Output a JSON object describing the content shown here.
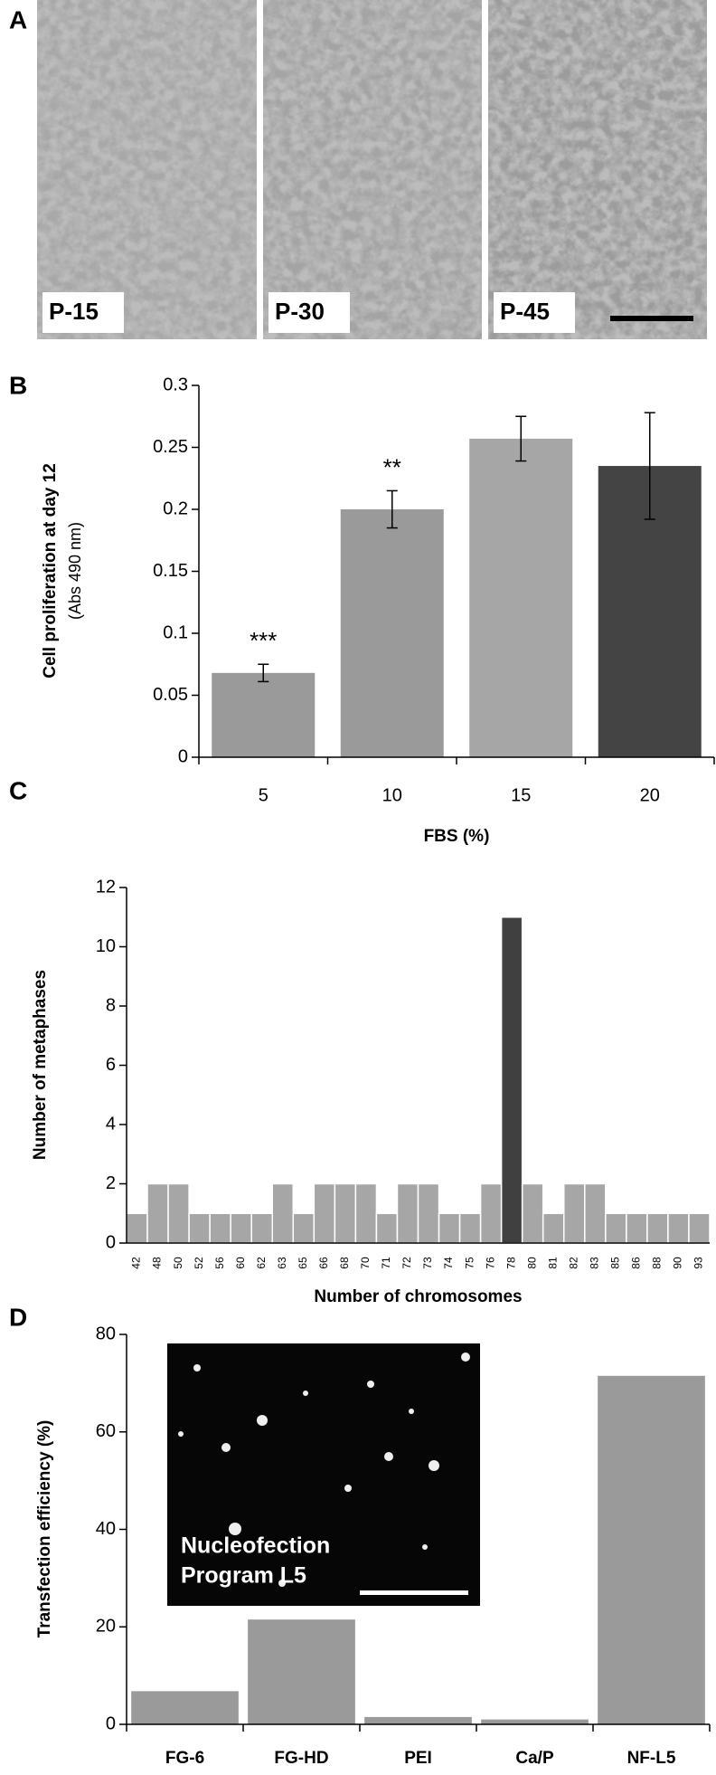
{
  "panel_a": {
    "panel": "A",
    "labels": [
      "P-15",
      "P-30",
      "P-45"
    ]
  },
  "chart_data": [
    {
      "type": "bar",
      "panel": "B",
      "ylabel": "Cell proliferation at day 12",
      "ylabel_unit": "(Abs 490 nm)",
      "xlabel": "FBS (%)",
      "categories": [
        "5",
        "10",
        "15",
        "20"
      ],
      "values": [
        0.068,
        0.2,
        0.257,
        0.235
      ],
      "errors": [
        0.007,
        0.015,
        0.018,
        0.043
      ],
      "annotations": [
        "***",
        "**",
        null,
        null
      ],
      "colors": [
        "#9a9a9a",
        "#9a9a9a",
        "#a6a6a6",
        "#444444"
      ],
      "ylim": [
        0,
        0.3
      ],
      "yticks": [
        0,
        0.05,
        0.1,
        0.15,
        0.2,
        0.25,
        0.3
      ]
    },
    {
      "type": "bar",
      "panel": "C",
      "ylabel": "Number of metaphases",
      "xlabel": "Number of chromosomes",
      "categories": [
        "42",
        "48",
        "50",
        "52",
        "56",
        "60",
        "62",
        "63",
        "65",
        "66",
        "68",
        "70",
        "71",
        "72",
        "73",
        "74",
        "75",
        "76",
        "78",
        "80",
        "81",
        "82",
        "83",
        "85",
        "86",
        "88",
        "90",
        "93"
      ],
      "values": [
        1,
        2,
        2,
        1,
        1,
        1,
        1,
        2,
        1,
        2,
        2,
        2,
        1,
        2,
        2,
        1,
        1,
        2,
        11,
        2,
        1,
        2,
        2,
        1,
        1,
        1,
        1,
        1
      ],
      "colors": [
        "#a6a6a6",
        "#a6a6a6",
        "#a6a6a6",
        "#a6a6a6",
        "#a6a6a6",
        "#a6a6a6",
        "#a6a6a6",
        "#a6a6a6",
        "#a6a6a6",
        "#a6a6a6",
        "#a6a6a6",
        "#a6a6a6",
        "#a6a6a6",
        "#a6a6a6",
        "#a6a6a6",
        "#a6a6a6",
        "#a6a6a6",
        "#a6a6a6",
        "#404040",
        "#a6a6a6",
        "#a6a6a6",
        "#a6a6a6",
        "#a6a6a6",
        "#a6a6a6",
        "#a6a6a6",
        "#a6a6a6",
        "#a6a6a6",
        "#a6a6a6"
      ],
      "ylim": [
        0,
        12
      ],
      "yticks": [
        0,
        2,
        4,
        6,
        8,
        10,
        12
      ]
    },
    {
      "type": "bar",
      "panel": "D",
      "ylabel": "Transfection efficiency (%)",
      "inset_text": [
        "Nucleofection",
        "Program L5"
      ],
      "categories": [
        "FG-6",
        "FG-HD",
        "PEI",
        "Ca/P",
        "NF-L5"
      ],
      "values": [
        6.8,
        21.5,
        1.5,
        1,
        71.5
      ],
      "colors": [
        "#9a9a9a",
        "#9a9a9a",
        "#9a9a9a",
        "#9a9a9a",
        "#9a9a9a"
      ],
      "ylim": [
        0,
        80
      ],
      "yticks": [
        0,
        20,
        40,
        60,
        80
      ]
    }
  ]
}
